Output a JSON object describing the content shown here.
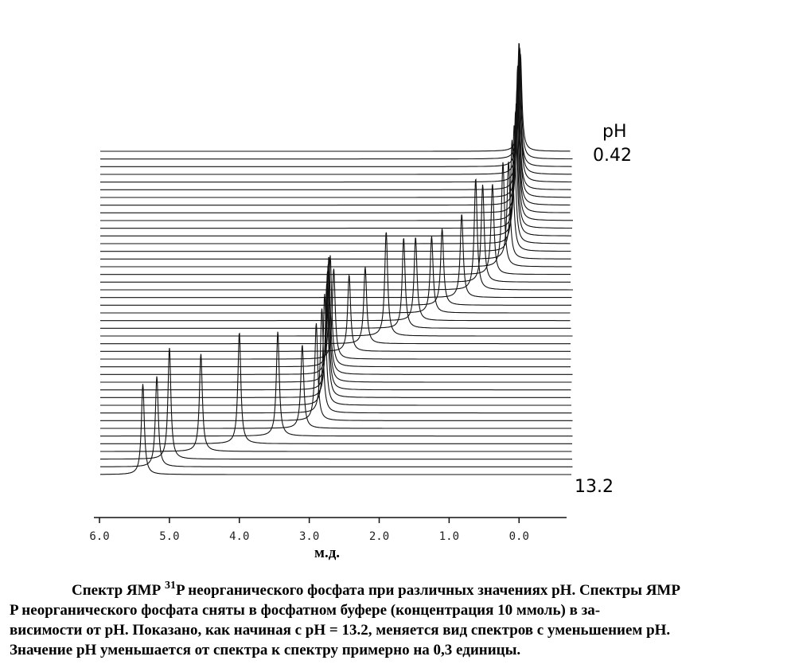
{
  "figure": {
    "ph_label": "pH",
    "ph_top": "0.42",
    "ph_bottom": "13.2",
    "x_label": "м.д.",
    "xlim": [
      6.08,
      -0.68
    ],
    "xticks": [
      {
        "value": 6,
        "label": "6.0"
      },
      {
        "value": 5,
        "label": "5.0"
      },
      {
        "value": 4,
        "label": "4.0"
      },
      {
        "value": 3,
        "label": "3.0"
      },
      {
        "value": 2,
        "label": "2.0"
      },
      {
        "value": 1,
        "label": "1.0"
      },
      {
        "value": 0,
        "label": "0.0"
      }
    ],
    "peak_shifts": [
      5.38,
      5.18,
      5.0,
      4.55,
      4.0,
      3.45,
      3.1,
      2.9,
      2.82,
      2.78,
      2.75,
      2.74,
      2.73,
      2.72,
      2.7,
      2.65,
      2.43,
      2.2,
      1.9,
      1.65,
      1.48,
      1.25,
      1.1,
      0.82,
      0.62,
      0.52,
      0.38,
      0.23,
      0.15,
      0.1,
      0.07,
      0.05,
      0.04,
      0.03,
      0.02,
      0.02,
      0.01,
      0.01,
      0.0,
      0.0,
      0.0,
      -0.01,
      -0.02
    ],
    "peak_heights": [
      65,
      65,
      80,
      70,
      80,
      75,
      60,
      70,
      75,
      80,
      82,
      85,
      85,
      85,
      80,
      65,
      55,
      55,
      75,
      65,
      60,
      55,
      55,
      60,
      80,
      70,
      65,
      75,
      70,
      80,
      85,
      90,
      90,
      95,
      95,
      100,
      95,
      90,
      95,
      95,
      85,
      80,
      70
    ]
  },
  "caption": {
    "line1_prefix": "Спектр ЯМР ",
    "line1_sup": "31",
    "line1_rest": "P неорганического фосфата при различных значениях pH. Спектры ЯМР",
    "lines": [
      "P   неорганического фосфата сняты в фосфатном буфере (концентрация 10 ммоль) в за-",
      "висимости от pH. Показано, как начиная с pH = 13.2, меняется вид спектров с уменьшением pH.",
      "Значение pH уменьшается от спектра к спектру примерно на 0,3 единицы."
    ]
  }
}
